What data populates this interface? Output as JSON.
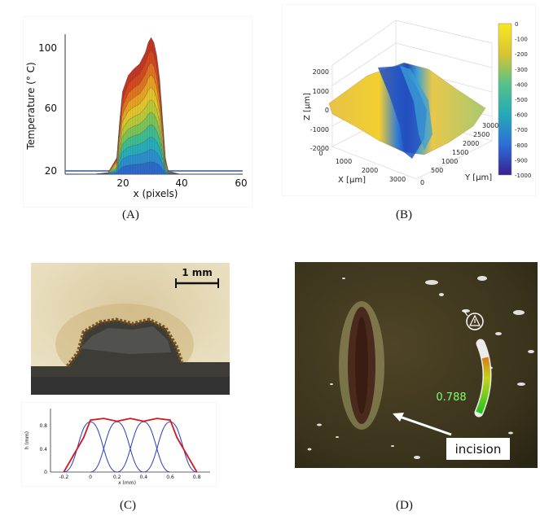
{
  "figure": {
    "captions": [
      "(A)",
      "(B)",
      "(C)",
      "(D)"
    ]
  },
  "panel_a": {
    "ylabel": "Temperature (° C)",
    "xlabel": "x (pixels)",
    "yticks": [
      "20",
      "60",
      "100"
    ],
    "xticks": [
      "20",
      "40",
      "60"
    ]
  },
  "panel_b": {
    "zlabel": "Z [μm]",
    "xlabel": "X [μm]",
    "ylabel": "Y [μm]",
    "zticks": [
      "2000",
      "1000",
      "0",
      "-1000",
      "-2000"
    ],
    "xticks": [
      "0",
      "1000",
      "2000",
      "3000"
    ],
    "yticks": [
      "0",
      "500",
      "1000",
      "1500",
      "2000",
      "2500",
      "3000"
    ],
    "colorbar_ticks": [
      "0",
      "-100",
      "-200",
      "-300",
      "-400",
      "-500",
      "-600",
      "-700",
      "-800",
      "-900",
      "-1000"
    ]
  },
  "panel_c": {
    "scalebar": "1 mm",
    "ylabel": "h (mm)",
    "xlabel": "x (mm)",
    "yticks": [
      "0",
      "0.4",
      "0.8"
    ],
    "xticks": [
      "-0.2",
      "0",
      "0.2",
      "0.4",
      "0.6",
      "0.8"
    ]
  },
  "panel_d": {
    "value": "0.788",
    "arrow_label": "incision",
    "gauge_level": 0.79
  },
  "chart_data": [
    {
      "type": "area",
      "panel": "A",
      "xlabel": "x (pixels)",
      "ylabel": "Temperature (° C)",
      "ylim": [
        20,
        105
      ],
      "xlim": [
        0,
        62
      ],
      "peak": {
        "x": 30,
        "y": 103
      },
      "profile": [
        [
          5,
          20
        ],
        [
          10,
          20
        ],
        [
          15,
          21
        ],
        [
          18,
          30
        ],
        [
          19,
          52
        ],
        [
          20,
          70
        ],
        [
          22,
          80
        ],
        [
          24,
          84
        ],
        [
          26,
          87
        ],
        [
          28,
          94
        ],
        [
          29,
          100
        ],
        [
          30,
          103
        ],
        [
          31,
          100
        ],
        [
          32,
          92
        ],
        [
          33,
          78
        ],
        [
          34,
          55
        ],
        [
          35,
          30
        ],
        [
          36,
          22
        ],
        [
          40,
          20
        ],
        [
          50,
          20
        ],
        [
          60,
          20
        ]
      ]
    },
    {
      "type": "line",
      "panel": "C",
      "xlabel": "x (mm)",
      "ylabel": "h (mm)",
      "xlim": [
        -0.3,
        0.9
      ],
      "ylim": [
        0,
        1.1
      ],
      "series": [
        {
          "color": "#2b3fc4",
          "values": [
            [
              -0.2,
              0.0
            ],
            [
              0.0,
              0.87
            ],
            [
              0.2,
              0.0
            ]
          ]
        },
        {
          "color": "#2b3fc4",
          "values": [
            [
              0.0,
              0.0
            ],
            [
              0.2,
              0.87
            ],
            [
              0.4,
              0.0
            ]
          ]
        },
        {
          "color": "#2b3fc4",
          "values": [
            [
              0.2,
              0.0
            ],
            [
              0.4,
              0.87
            ],
            [
              0.6,
              0.0
            ]
          ]
        },
        {
          "color": "#2b3fc4",
          "values": [
            [
              0.4,
              0.0
            ],
            [
              0.6,
              0.87
            ],
            [
              0.8,
              0.0
            ]
          ]
        },
        {
          "color": "#d1191f",
          "values": [
            [
              -0.2,
              0.0
            ],
            [
              -0.05,
              0.6
            ],
            [
              0.0,
              0.9
            ],
            [
              0.1,
              0.93
            ],
            [
              0.2,
              0.88
            ],
            [
              0.3,
              0.93
            ],
            [
              0.4,
              0.88
            ],
            [
              0.5,
              0.93
            ],
            [
              0.6,
              0.9
            ],
            [
              0.65,
              0.6
            ],
            [
              0.8,
              0.0
            ]
          ]
        }
      ]
    }
  ]
}
